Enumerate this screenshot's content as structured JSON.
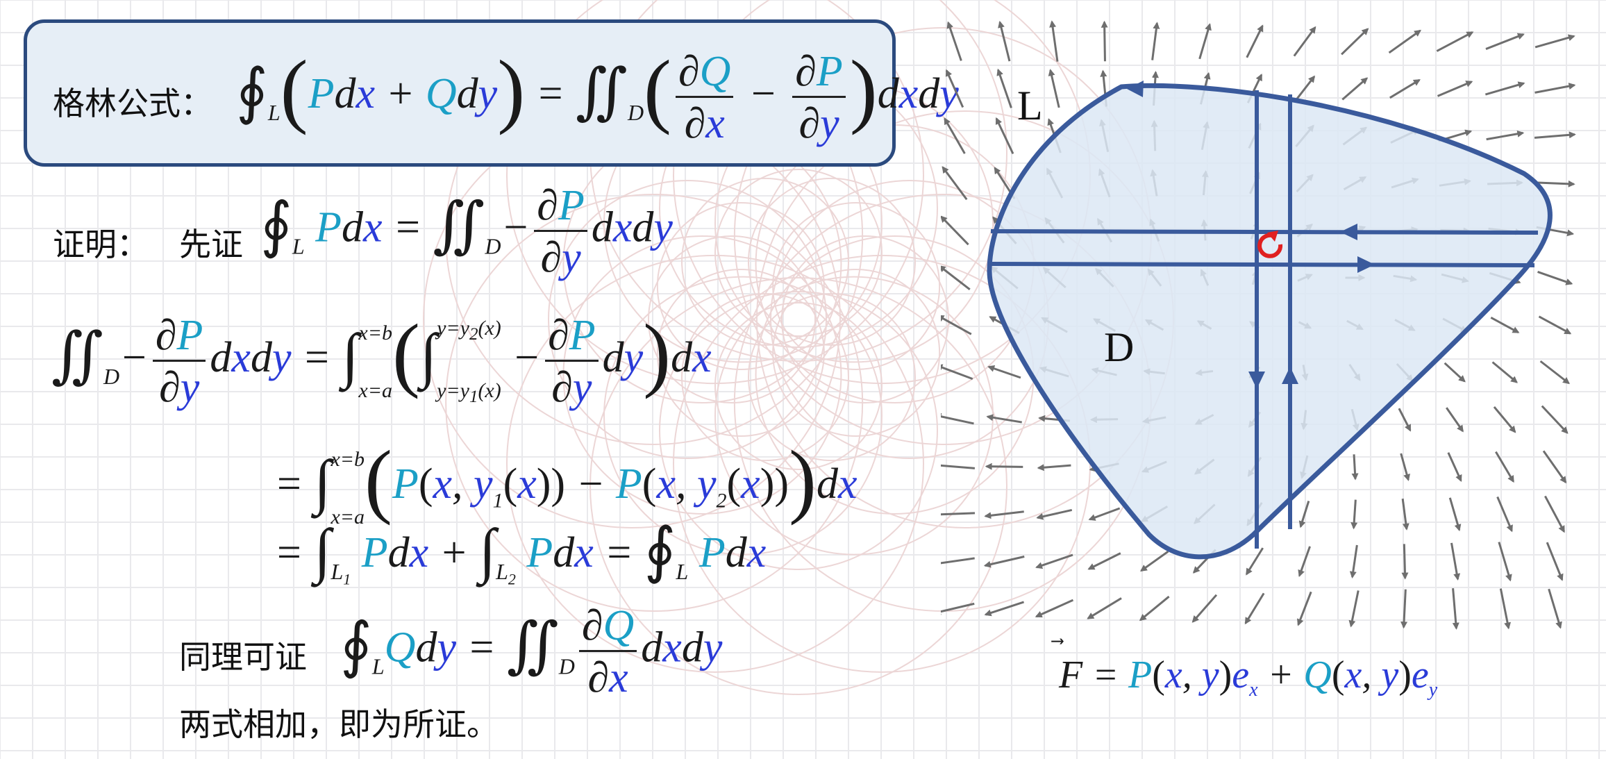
{
  "green_formula": {
    "label": "格林公式：",
    "sub_L": "L",
    "sub_D": "D",
    "P": "P",
    "Q": "Q",
    "x": "x",
    "y": "y",
    "d": "d",
    "partial": "∂"
  },
  "proof": {
    "label": "证明：",
    "first_prove": "先证",
    "line1_sub_L": "L",
    "line1_sub_D": "D"
  },
  "derivation": {
    "sub_D": "D",
    "upper_x": "x=b",
    "lower_x": "x=a",
    "upper_y": "y=y",
    "upper_y_sub": "2",
    "lower_y": "y=y",
    "lower_y_sub": "1",
    "y1": "y",
    "y1_sub": "1",
    "y2": "y",
    "y2_sub": "2",
    "L1": "L",
    "L1_sub": "1",
    "L2": "L",
    "L2_sub": "2",
    "L": "L"
  },
  "similarly": {
    "label": "同理可证",
    "sub_L": "L",
    "sub_D": "D"
  },
  "conclusion": "两式相加，即为所证。",
  "diagram": {
    "curve_label": "L",
    "region_label": "D",
    "field_formula": {
      "F": "F",
      "P": "P",
      "Q": "Q",
      "x": "x",
      "y": "y",
      "e": "e",
      "ex_sub": "x",
      "ey_sub": "y"
    }
  },
  "colors": {
    "P_Q": "#1b9fc6",
    "x_y": "#2a3bd8",
    "region_fill": "#dce8f5",
    "region_stroke": "#3a5a9c",
    "box_border": "#2b4a7e",
    "box_fill": "#e6eef6",
    "arrow": "#6e6e6e",
    "rotation_icon": "#e02020"
  }
}
